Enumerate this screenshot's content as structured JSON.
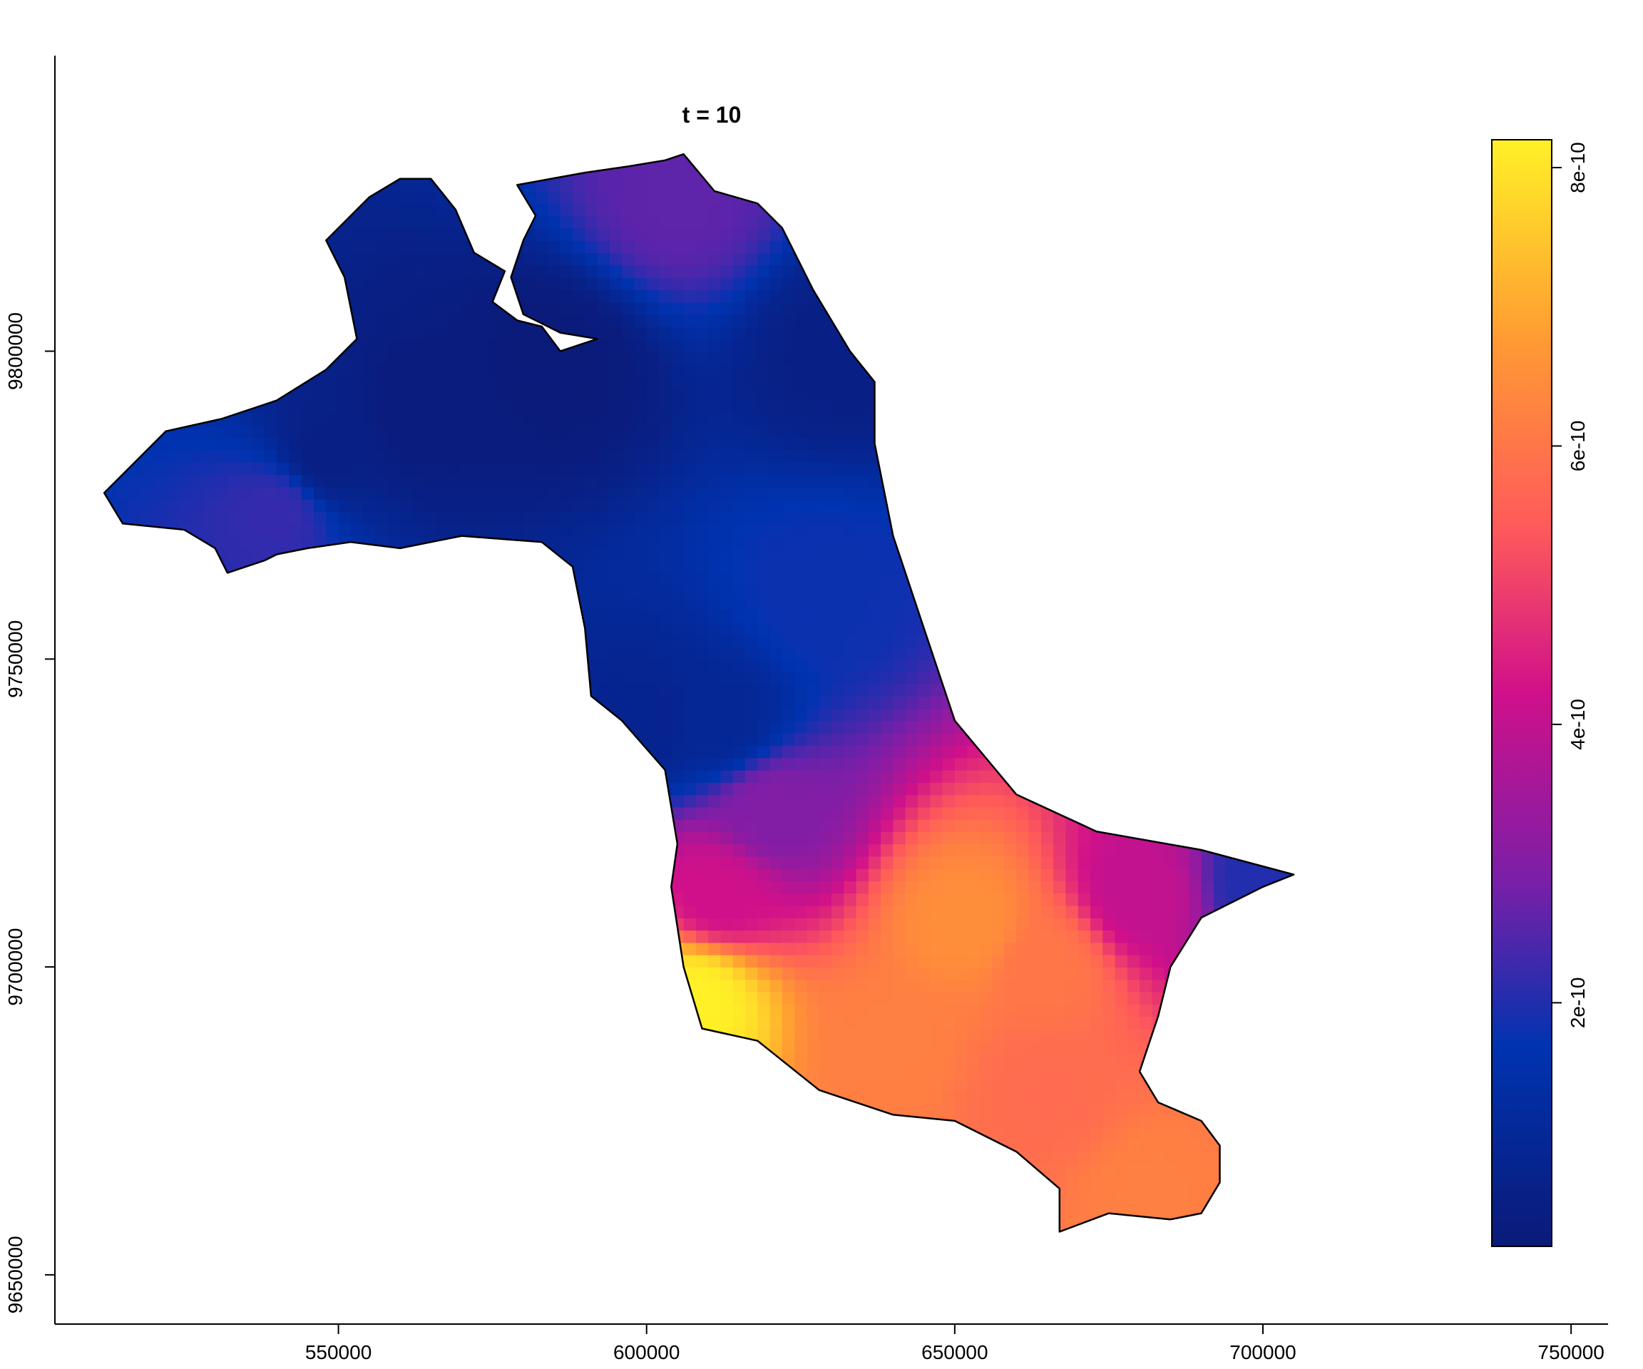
{
  "chart_data": {
    "type": "heatmap",
    "title": "t = 10",
    "xlabel": "",
    "ylabel": "",
    "x_ticks": [
      550000,
      600000,
      650000,
      700000,
      750000
    ],
    "x_tick_labels": [
      "550000",
      "600000",
      "650000",
      "700000",
      "750000"
    ],
    "y_ticks": [
      9650000,
      9700000,
      9750000,
      9800000
    ],
    "y_tick_labels": [
      "9650000",
      "9700000",
      "9750000",
      "9800000"
    ],
    "xlim": [
      504000,
      756000
    ],
    "ylim": [
      9642000,
      9848000
    ],
    "colorbar": {
      "range": [
        2.5e-11,
        8.2e-10
      ],
      "ticks": [
        2e-10,
        4e-10,
        6e-10,
        8e-10
      ],
      "tick_labels": [
        "2e-10",
        "4e-10",
        "6e-10",
        "8e-10"
      ],
      "colors": [
        "#0b1a78",
        "#0033b0",
        "#7a1fa8",
        "#d0108a",
        "#ff5a5a",
        "#ff9b32",
        "#fff027"
      ]
    },
    "region_outline": [
      [
        512,
        9777
      ],
      [
        517,
        9782
      ],
      [
        522,
        9787
      ],
      [
        531,
        9789
      ],
      [
        540,
        9792
      ],
      [
        548,
        9797
      ],
      [
        553,
        9802
      ],
      [
        551,
        9812
      ],
      [
        548,
        9818
      ],
      [
        552,
        9822
      ],
      [
        555,
        9825
      ],
      [
        560,
        9828
      ],
      [
        565,
        9828
      ],
      [
        569,
        9823
      ],
      [
        572,
        9816
      ],
      [
        577,
        9813
      ],
      [
        575,
        9808
      ],
      [
        579,
        9805
      ],
      [
        583,
        9804
      ],
      [
        586,
        9800
      ],
      [
        589,
        9801
      ],
      [
        592,
        9802
      ],
      [
        586,
        9803
      ],
      [
        580,
        9806
      ],
      [
        578,
        9812
      ],
      [
        580,
        9818
      ],
      [
        582,
        9822
      ],
      [
        579,
        9827
      ],
      [
        590,
        9829
      ],
      [
        597,
        9830
      ],
      [
        603,
        9831
      ],
      [
        606,
        9832
      ],
      [
        611,
        9826
      ],
      [
        618,
        9824
      ],
      [
        622,
        9820
      ],
      [
        627,
        9810
      ],
      [
        633,
        9800
      ],
      [
        637,
        9795
      ],
      [
        637,
        9785
      ],
      [
        640,
        9770
      ],
      [
        645,
        9755
      ],
      [
        650,
        9740
      ],
      [
        660,
        9728
      ],
      [
        673,
        9722
      ],
      [
        690,
        9719
      ],
      [
        705,
        9715
      ],
      [
        700,
        9713
      ],
      [
        690,
        9708
      ],
      [
        685,
        9700
      ],
      [
        683,
        9692
      ],
      [
        680,
        9683
      ],
      [
        683,
        9678
      ],
      [
        690,
        9675
      ],
      [
        693,
        9671
      ],
      [
        693,
        9665
      ],
      [
        690,
        9660
      ],
      [
        685,
        9659
      ],
      [
        675,
        9660
      ],
      [
        667,
        9657
      ],
      [
        667,
        9664
      ],
      [
        660,
        9670
      ],
      [
        650,
        9675
      ],
      [
        640,
        9676
      ],
      [
        628,
        9680
      ],
      [
        618,
        9688
      ],
      [
        609,
        9690
      ],
      [
        606,
        9700
      ],
      [
        604,
        9713
      ],
      [
        605,
        9720
      ],
      [
        603,
        9732
      ],
      [
        596,
        9740
      ],
      [
        591,
        9744
      ],
      [
        590,
        9755
      ],
      [
        588,
        9765
      ],
      [
        583,
        9769
      ],
      [
        570,
        9770
      ],
      [
        560,
        9768
      ],
      [
        552,
        9769
      ],
      [
        545,
        9768
      ],
      [
        540,
        9767
      ],
      [
        538,
        9766
      ],
      [
        532,
        9764
      ],
      [
        530,
        9768
      ],
      [
        525,
        9771
      ],
      [
        515,
        9772
      ],
      [
        512,
        9777
      ]
    ],
    "field_hotspots": [
      {
        "x": 563,
        "y": 9790,
        "value": 4e-11
      },
      {
        "x": 585,
        "y": 9798,
        "value": 3e-11
      },
      {
        "x": 548,
        "y": 9783,
        "value": 6e-11
      },
      {
        "x": 540,
        "y": 9774,
        "value": 2.2e-10
      },
      {
        "x": 605,
        "y": 9825,
        "value": 2.6e-10
      },
      {
        "x": 632,
        "y": 9800,
        "value": 6e-11
      },
      {
        "x": 628,
        "y": 9760,
        "value": 1.8e-10
      },
      {
        "x": 612,
        "y": 9740,
        "value": 1e-10
      },
      {
        "x": 620,
        "y": 9725,
        "value": 3e-10
      },
      {
        "x": 600,
        "y": 9740,
        "value": 8e-11
      },
      {
        "x": 612,
        "y": 9712,
        "value": 4.2e-10
      },
      {
        "x": 608,
        "y": 9695,
        "value": 8.2e-10
      },
      {
        "x": 652,
        "y": 9707,
        "value": 6.5e-10
      },
      {
        "x": 680,
        "y": 9712,
        "value": 4e-10
      },
      {
        "x": 700,
        "y": 9714,
        "value": 2e-10
      },
      {
        "x": 665,
        "y": 9680,
        "value": 5.8e-10
      },
      {
        "x": 682,
        "y": 9664,
        "value": 6.2e-10
      },
      {
        "x": 640,
        "y": 9688,
        "value": 6.2e-10
      },
      {
        "x": 665,
        "y": 9700,
        "value": 6e-10
      }
    ]
  }
}
